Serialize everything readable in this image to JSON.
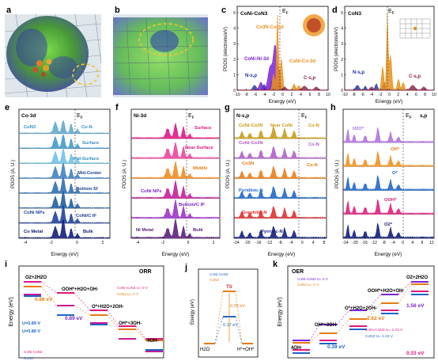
{
  "panel_letters": [
    "a",
    "b",
    "c",
    "d",
    "e",
    "f",
    "g",
    "h",
    "i",
    "j",
    "k"
  ],
  "colors": {
    "co": "#e8901a",
    "coni": "#7b22d6",
    "n": "#1a2ea0",
    "c": "#8a1f4a",
    "teal": "#2f8fbf",
    "navy": "#0d1a7a",
    "pink": "#e0157f",
    "magenta": "#c41a9a",
    "purple": "#7a3fb0",
    "gold": "#c89a12",
    "red": "#e02a2a",
    "orange": "#e87a10",
    "blue": "#1d64c8"
  },
  "c": {
    "title": "CoNi-CoN3",
    "ef": "E",
    "ef_sub": "F",
    "ylabel": "PDOS (electrons/eV)",
    "xlabel": "Energy (eV)",
    "xticks": [
      "-10",
      "-8",
      "-6",
      "-4",
      "-2",
      "0",
      "2",
      "4",
      "6",
      "8",
      "10"
    ],
    "yticks": [
      "0",
      "1",
      "2",
      "3",
      "4",
      "5"
    ],
    "labels": {
      "co3d": "Co3N-Co-3d",
      "ni3d": "CoNi-Ni-3d",
      "coni_co": "CoNi-Co-3d",
      "nsp": "N-s,p",
      "csp": "C-s,p"
    }
  },
  "d": {
    "title": "CoN3",
    "ef": "E",
    "ef_sub": "F",
    "ylabel": "PDOS (electrons/eV)",
    "xlabel": "Energy (eV)",
    "xticks": [
      "-10",
      "-8",
      "-6",
      "-4",
      "-2",
      "0",
      "2",
      "4",
      "6",
      "8",
      "10"
    ],
    "yticks": [
      "0",
      "1",
      "2",
      "3",
      "4",
      "5"
    ],
    "labels": {
      "nsp": "N-s,p",
      "csp": "C-s,p"
    }
  },
  "e": {
    "title": "Co-3d",
    "ef": "E",
    "ef_sub": "F",
    "ylabel": "PDOS (A. U.)",
    "xlabel": "Energy (eV)",
    "xticks": [
      "-4",
      "-2",
      "0",
      "2"
    ],
    "labels": [
      "CoN3",
      "Co-N",
      "Surface",
      "Mid-Surface",
      "Mid-Center",
      "Bottom Sf",
      "CoNi NPs",
      "CoNi/C IF",
      "Co Metal",
      "Bulk"
    ]
  },
  "f": {
    "title": "Ni-3d",
    "ef": "E",
    "ef_sub": "F",
    "ylabel": "PDOS (A. U.)",
    "xlabel": "Energy (eV)",
    "xticks": [
      "-4",
      "-2",
      "0",
      "2"
    ],
    "labels": [
      "Surface",
      "Near Surface",
      "Middle",
      "CoNi NPs",
      "Bottom/C IF",
      "Ni Metal",
      "Bulk"
    ]
  },
  "g": {
    "title": "N-s,p",
    "ef": "E",
    "ef_sub": "F",
    "ylabel": "PDOS (A. U.)",
    "xlabel": "Energy (eV)",
    "xticks": [
      "-24",
      "-20",
      "-16",
      "-12",
      "-8",
      "-4",
      "0",
      "4",
      "8"
    ],
    "labels": [
      "CoNi-Co3N",
      "Near CoNi",
      "Co-N",
      "CoNi-Co3N",
      "Co-N",
      "Co3N",
      "Co-N",
      "Pyridinic-N",
      "Graphitic-N",
      "Pyrrolic-N"
    ]
  },
  "h": {
    "title": "s,p",
    "ef": "E",
    "ef_sub": "F",
    "ylabel": "PDOS (A. U.)",
    "xlabel": "Energy (eV)",
    "xticks": [
      "-24",
      "-20",
      "-16",
      "-12",
      "-8",
      "-4",
      "0",
      "4",
      "8",
      "12"
    ],
    "labels": [
      "H2O*",
      "OH*",
      "O*",
      "OOH*",
      "O2*"
    ]
  },
  "i": {
    "title": "ORR",
    "ylabel": "Energy (eV)",
    "legend": [
      "CoNi-CoN3 U= 0 V",
      "CoN3 U= 0 V",
      "CoNi-CoN3",
      "CoN3"
    ],
    "steps": [
      "O2+2H2O",
      "OOH*+H2O+OH-",
      "O*+H2O+2OH-",
      "OH*+3OH-",
      "4OH-"
    ],
    "annotations": [
      "0.86 eV",
      "0.89 eV",
      "U=0.89 V",
      "U=0.86 V"
    ]
  },
  "j": {
    "ylabel": "Energy (eV)",
    "legend": [
      "CoNi-CoN3",
      "CoN3"
    ],
    "steps": [
      "H2O",
      "TS",
      "H*+OH*"
    ],
    "annotations": [
      "0.35 eV",
      "0.17 eV"
    ]
  },
  "k": {
    "title": "OER",
    "ylabel": "Energy (eV)",
    "legend": [
      "CoNi-CoN3 U= 0 V",
      "CoN3 U= 0 V"
    ],
    "steps": [
      "4OH-",
      "OH*+3OH-",
      "O*+H2O+2OH-",
      "OOH*+H2O+OH-",
      "O2+2H2O"
    ],
    "annotations": [
      "1.56 eV",
      "1.62 eV",
      "CoNi-CoN3 U= 1.23 V",
      "CoN3 U= 1.23 V",
      "0.39 eV",
      "0.33 eV"
    ]
  }
}
